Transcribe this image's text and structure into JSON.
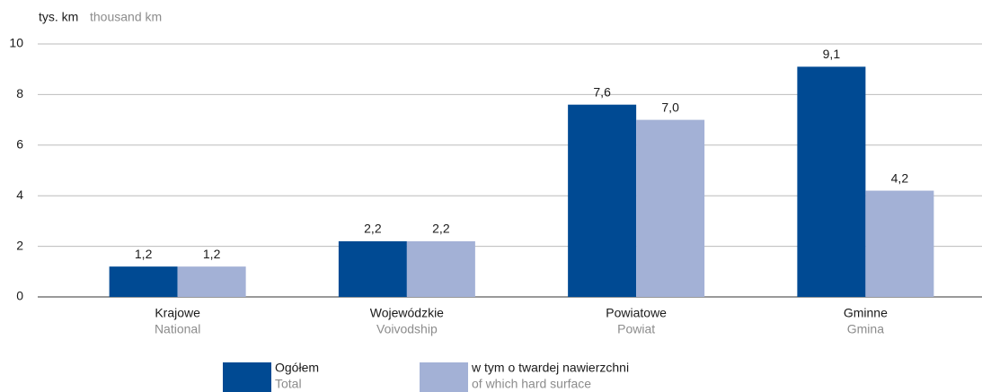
{
  "chart_data": {
    "type": "bar",
    "unit_label": "tys. km",
    "unit_label_en": "thousand km",
    "categories": [
      "Krajowe",
      "Wojewódzkie",
      "Powiatowe",
      "Gminne"
    ],
    "categories_en": [
      "National",
      "Voivodship",
      "Powiat",
      "Gmina"
    ],
    "series": [
      {
        "name": "Ogółem",
        "name_en": "Total",
        "color": "#004a93",
        "values": [
          1.2,
          2.2,
          7.6,
          9.1
        ],
        "value_labels": [
          "1,2",
          "2,2",
          "7,6",
          "9,1"
        ]
      },
      {
        "name": "w tym o twardej nawierzchni",
        "name_en": "of which hard surface",
        "color": "#a3b1d6",
        "values": [
          1.2,
          2.2,
          7.0,
          4.2
        ],
        "value_labels": [
          "1,2",
          "2,2",
          "7,0",
          "4,2"
        ]
      }
    ],
    "ylim": [
      0,
      10
    ],
    "yticks": [
      0,
      2,
      4,
      6,
      8,
      10
    ],
    "grid": true
  }
}
